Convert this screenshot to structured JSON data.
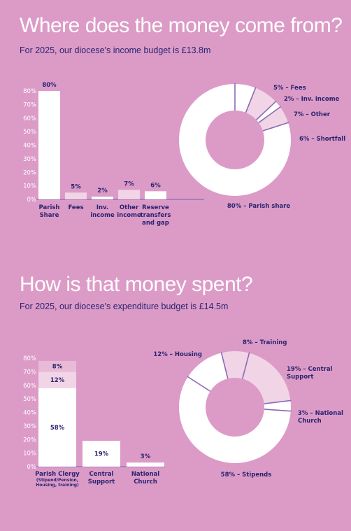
{
  "colors": {
    "background": "#dc9bc7",
    "title": "#ffffff",
    "text": "#2a2470",
    "bar_primary": "#ffffff",
    "bar_secondary": "#f1d4e6",
    "donut_divider": "#8a6ab4"
  },
  "chart_data": [
    {
      "type": "bar",
      "title": "Where does the money come from?",
      "subtitle": "For 2025, our diocese's income budget is £13.8m",
      "categories": [
        [
          "Parish",
          "Share"
        ],
        [
          "Fees"
        ],
        [
          "Inv.",
          "income"
        ],
        [
          "Other",
          "income"
        ],
        [
          "Reserve",
          "transfers",
          "and gap"
        ]
      ],
      "values": [
        80,
        5,
        2,
        7,
        6
      ],
      "value_labels": [
        "80%",
        "5%",
        "2%",
        "7%",
        "6%"
      ],
      "ylim": [
        0,
        80
      ],
      "yticks": [
        0,
        10,
        20,
        30,
        40,
        50,
        60,
        70,
        80
      ],
      "ytick_labels": [
        "0%",
        "10%",
        "20%",
        "30%",
        "40%",
        "50%",
        "60%",
        "70%",
        "80%"
      ],
      "bar_colors": [
        "#ffffff",
        "#f1d4e6",
        "#ffffff",
        "#f1d4e6",
        "#ffffff"
      ]
    },
    {
      "type": "pie",
      "donut": true,
      "slices": [
        {
          "label": "80% – Parish share",
          "value": 80,
          "color": "#ffffff"
        },
        {
          "label": "5% – Fees",
          "value": 5,
          "color": "#f1d4e6"
        },
        {
          "label": "2% – Inv. income",
          "value": 2,
          "color": "#ffffff"
        },
        {
          "label": "7% – Other",
          "value": 7,
          "color": "#f1d4e6"
        },
        {
          "label": "6% – Shortfall",
          "value": 6,
          "color": "#ffffff"
        }
      ]
    },
    {
      "type": "bar",
      "stacked": true,
      "title": "How is that money spent?",
      "subtitle": "For 2025, our diocese's expenditure budget is £14.5m",
      "categories": [
        [
          "Parish Clergy"
        ],
        [
          "Central",
          "Support"
        ],
        [
          "National",
          "Church"
        ]
      ],
      "category_notes": [
        [
          "(Stipend/Pension,",
          "Housing, training)"
        ],
        [],
        []
      ],
      "stacks": [
        [
          {
            "value": 58,
            "label": "58%",
            "color": "#ffffff"
          },
          {
            "value": 12,
            "label": "12%",
            "color": "#f1d4e6"
          },
          {
            "value": 8,
            "label": "8%",
            "color": "#e9b9d8"
          }
        ],
        [
          {
            "value": 19,
            "label": "19%",
            "color": "#ffffff"
          }
        ],
        [
          {
            "value": 3,
            "label": "3%",
            "color": "#ffffff"
          }
        ]
      ],
      "ylim": [
        0,
        80
      ],
      "yticks": [
        0,
        10,
        20,
        30,
        40,
        50,
        60,
        70,
        80
      ],
      "ytick_labels": [
        "0%",
        "10%",
        "20%",
        "30%",
        "40%",
        "50%",
        "60%",
        "70%",
        "80%"
      ]
    },
    {
      "type": "pie",
      "donut": true,
      "slices": [
        {
          "label": "58% – Stipends",
          "value": 58,
          "color": "#ffffff"
        },
        {
          "label": "12% – Housing",
          "value": 12,
          "color": "#ffffff"
        },
        {
          "label": "8% – Training",
          "value": 8,
          "color": "#f1d4e6"
        },
        {
          "label": "19% – Central Support",
          "label_lines": [
            "19% – Central",
            "Support"
          ],
          "value": 19,
          "color": "#f1d4e6"
        },
        {
          "label": "3% – National Church",
          "label_lines": [
            "3% – National",
            "Church"
          ],
          "value": 3,
          "color": "#ffffff"
        }
      ]
    }
  ]
}
